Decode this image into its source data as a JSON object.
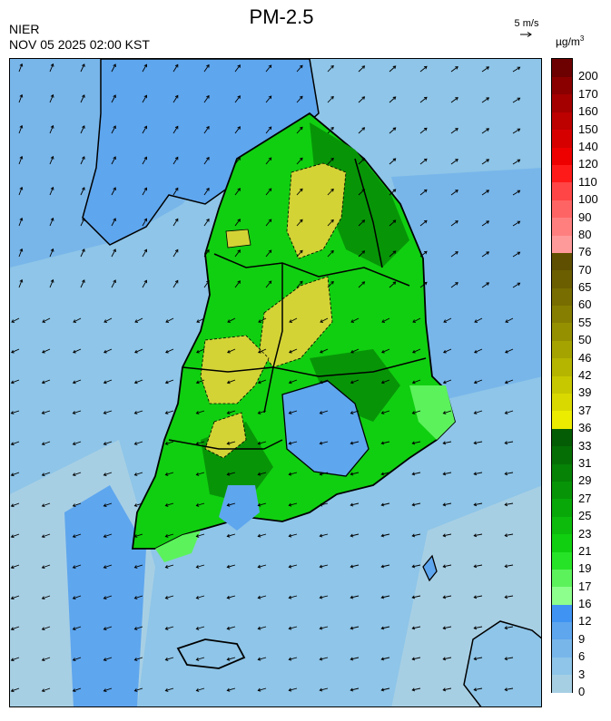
{
  "title": "PM-2.5",
  "source": "NIER",
  "timestamp": "NOV 05 2025 02:00 KST",
  "wind_reference": "5 m/s",
  "unit_base": "µg/m",
  "unit_exp": "3",
  "legend": [
    {
      "label": "0",
      "color": "#a7cfe4"
    },
    {
      "label": "3",
      "color": "#8ec5e8"
    },
    {
      "label": "6",
      "color": "#78b6ea"
    },
    {
      "label": "9",
      "color": "#5ea6ee"
    },
    {
      "label": "12",
      "color": "#3f94f3"
    },
    {
      "label": "16",
      "color": "#8dff8d"
    },
    {
      "label": "17",
      "color": "#5cf25c"
    },
    {
      "label": "19",
      "color": "#27e327"
    },
    {
      "label": "21",
      "color": "#10cf10"
    },
    {
      "label": "23",
      "color": "#0cbb0c"
    },
    {
      "label": "25",
      "color": "#09a809"
    },
    {
      "label": "27",
      "color": "#079507"
    },
    {
      "label": "29",
      "color": "#068206"
    },
    {
      "label": "31",
      "color": "#056f05"
    },
    {
      "label": "33",
      "color": "#045c04"
    },
    {
      "label": "36",
      "color": "#ecec00"
    },
    {
      "label": "37",
      "color": "#d9d900"
    },
    {
      "label": "39",
      "color": "#c8c800"
    },
    {
      "label": "42",
      "color": "#b5b500"
    },
    {
      "label": "46",
      "color": "#a4a300"
    },
    {
      "label": "50",
      "color": "#949000"
    },
    {
      "label": "55",
      "color": "#857e00"
    },
    {
      "label": "60",
      "color": "#776d00"
    },
    {
      "label": "65",
      "color": "#6b5e00"
    },
    {
      "label": "70",
      "color": "#5e5000"
    },
    {
      "label": "76",
      "color": "#ff9a9a"
    },
    {
      "label": "80",
      "color": "#ff7f7f"
    },
    {
      "label": "90",
      "color": "#ff6464"
    },
    {
      "label": "100",
      "color": "#ff4545"
    },
    {
      "label": "110",
      "color": "#ff1a1a"
    },
    {
      "label": "120",
      "color": "#ee0000"
    },
    {
      "label": "140",
      "color": "#d60000"
    },
    {
      "label": "150",
      "color": "#bd0000"
    },
    {
      "label": "160",
      "color": "#a40000"
    },
    {
      "label": "170",
      "color": "#8a0000"
    },
    {
      "label": "200",
      "color": "#6d0000"
    }
  ],
  "map_colors": {
    "ocean": "#8ec5e8",
    "ocean_shallow": "#a7cfe4",
    "ocean_mid": "#78b6ea",
    "ocean_deep": "#5ea6ee",
    "land_low": "#5ea6ee",
    "green_light": "#5cf25c",
    "green": "#10cf10",
    "green_dark": "#079507",
    "yellow": "#d3d336",
    "outline": "#000000"
  }
}
